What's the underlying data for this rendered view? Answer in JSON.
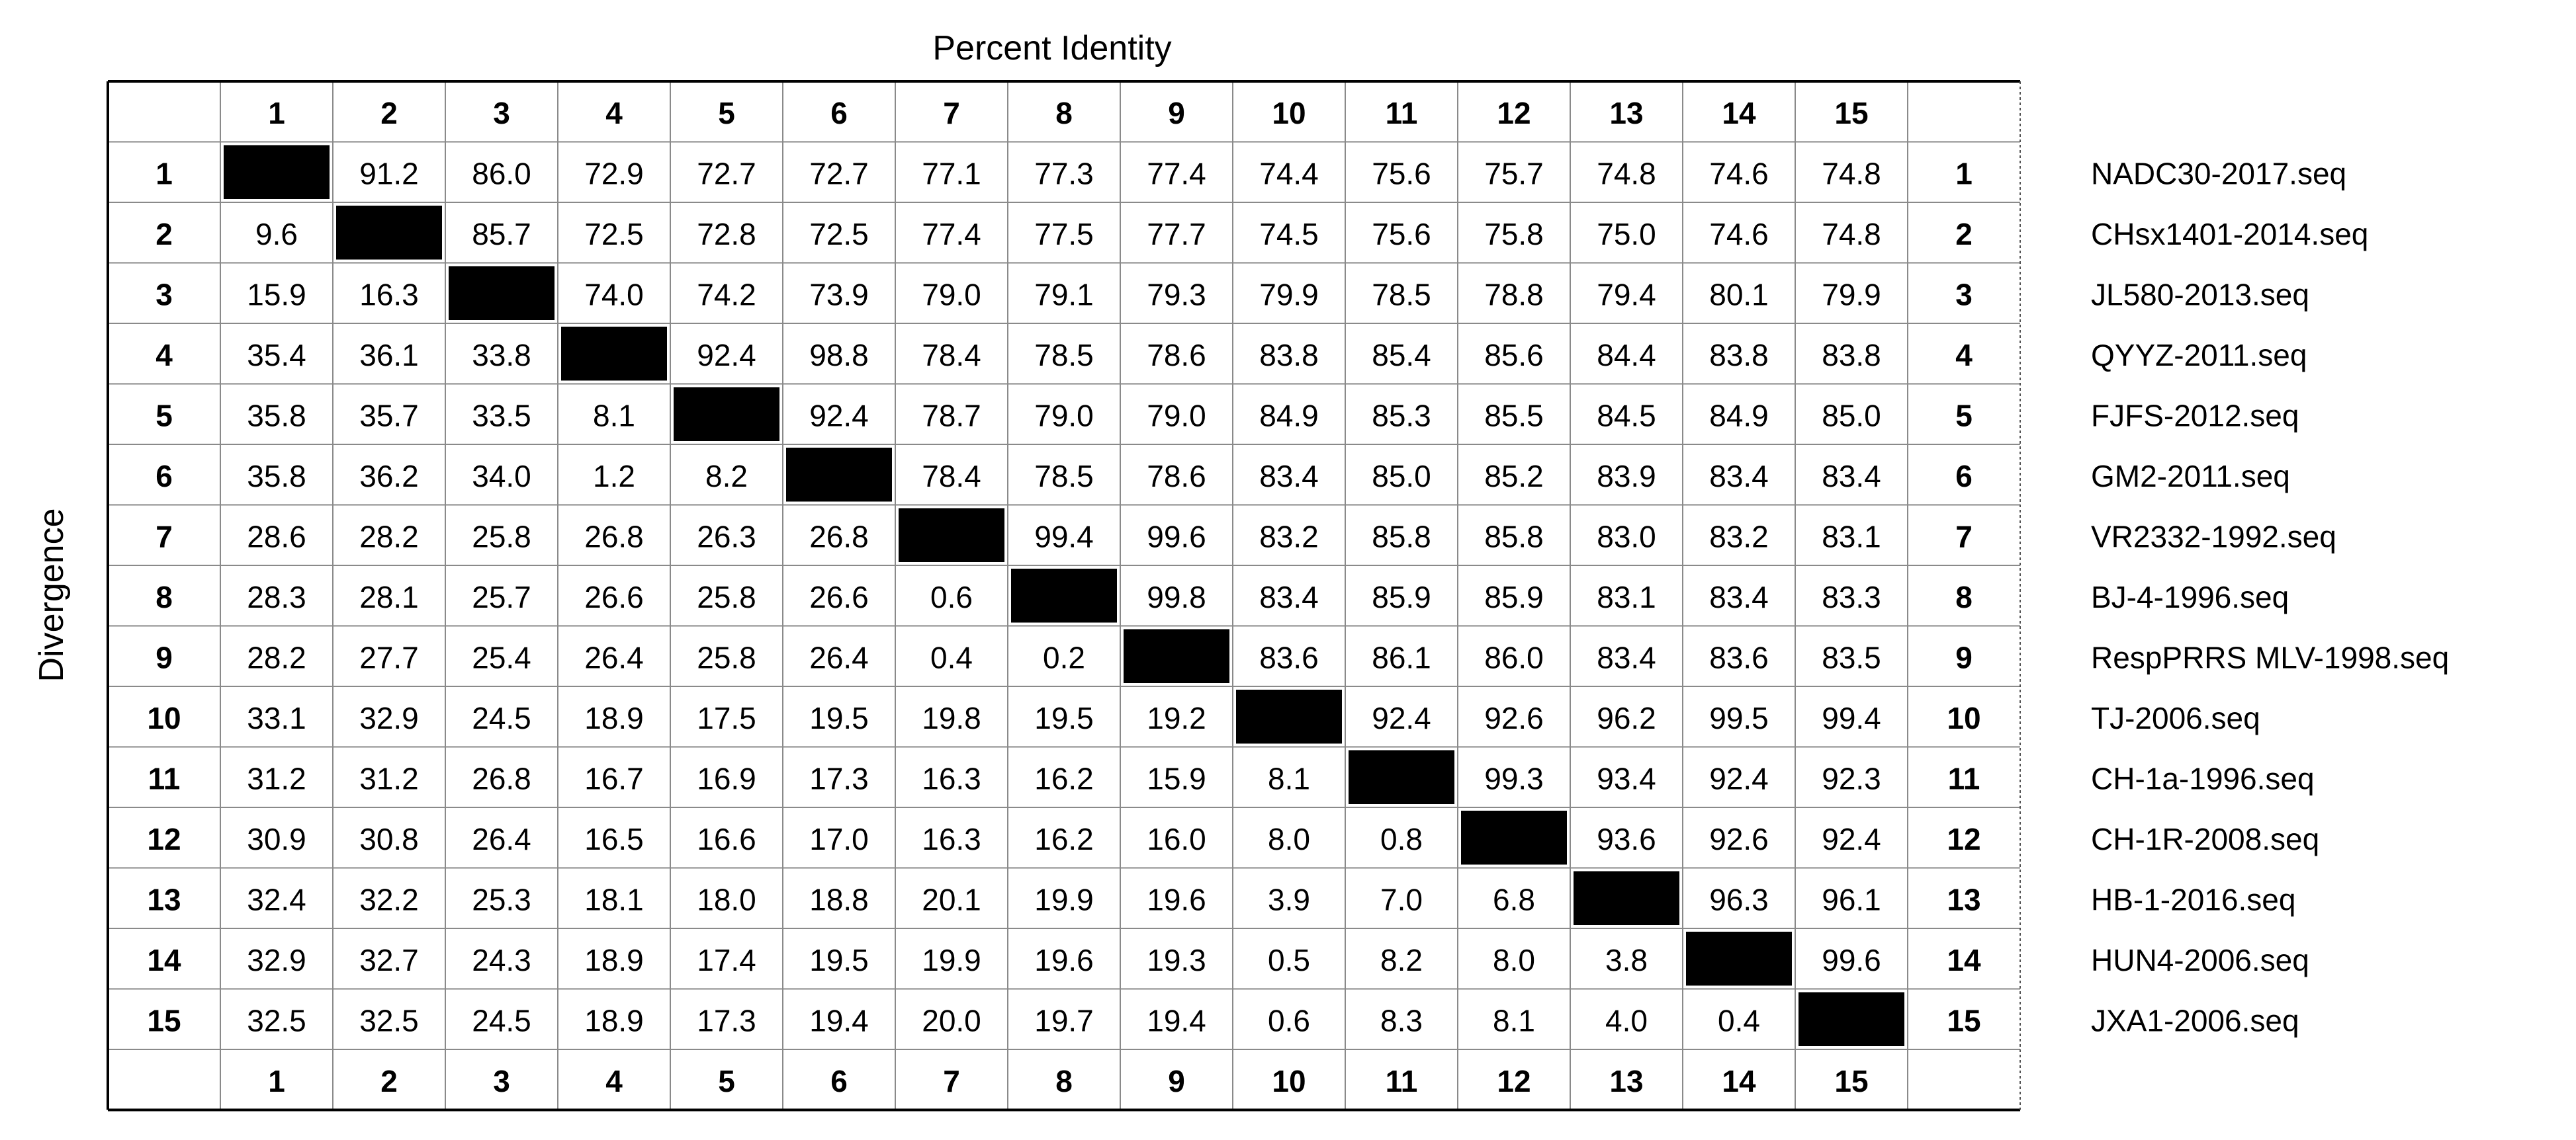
{
  "top_label": "Percent Identity",
  "side_label": "Divergence",
  "column_numbers": [
    "1",
    "2",
    "3",
    "4",
    "5",
    "6",
    "7",
    "8",
    "9",
    "10",
    "11",
    "12",
    "13",
    "14",
    "15"
  ],
  "row_numbers": [
    "1",
    "2",
    "3",
    "4",
    "5",
    "6",
    "7",
    "8",
    "9",
    "10",
    "11",
    "12",
    "13",
    "14",
    "15"
  ],
  "sequence_names": [
    "NADC30-2017.seq",
    "CHsx1401-2014.seq",
    "JL580-2013.seq",
    "QYYZ-2011.seq",
    "FJFS-2012.seq",
    "GM2-2011.seq",
    "VR2332-1992.seq",
    "BJ-4-1996.seq",
    "RespPRRS MLV-1998.seq",
    "TJ-2006.seq",
    "CH-1a-1996.seq",
    "CH-1R-2008.seq",
    "HB-1-2016.seq",
    "HUN4-2006.seq",
    "JXA1-2006.seq"
  ],
  "chart_data": {
    "type": "table",
    "title": "Percent Identity",
    "ylabel": "Divergence",
    "diagonal_color": "#000000",
    "cells": [
      [
        "",
        "91.2",
        "86.0",
        "72.9",
        "72.7",
        "72.7",
        "77.1",
        "77.3",
        "77.4",
        "74.4",
        "75.6",
        "75.7",
        "74.8",
        "74.6",
        "74.8"
      ],
      [
        "9.6",
        "",
        "85.7",
        "72.5",
        "72.8",
        "72.5",
        "77.4",
        "77.5",
        "77.7",
        "74.5",
        "75.6",
        "75.8",
        "75.0",
        "74.6",
        "74.8"
      ],
      [
        "15.9",
        "16.3",
        "",
        "74.0",
        "74.2",
        "73.9",
        "79.0",
        "79.1",
        "79.3",
        "79.9",
        "78.5",
        "78.8",
        "79.4",
        "80.1",
        "79.9"
      ],
      [
        "35.4",
        "36.1",
        "33.8",
        "",
        "92.4",
        "98.8",
        "78.4",
        "78.5",
        "78.6",
        "83.8",
        "85.4",
        "85.6",
        "84.4",
        "83.8",
        "83.8"
      ],
      [
        "35.8",
        "35.7",
        "33.5",
        "8.1",
        "",
        "92.4",
        "78.7",
        "79.0",
        "79.0",
        "84.9",
        "85.3",
        "85.5",
        "84.5",
        "84.9",
        "85.0"
      ],
      [
        "35.8",
        "36.2",
        "34.0",
        "1.2",
        "8.2",
        "",
        "78.4",
        "78.5",
        "78.6",
        "83.4",
        "85.0",
        "85.2",
        "83.9",
        "83.4",
        "83.4"
      ],
      [
        "28.6",
        "28.2",
        "25.8",
        "26.8",
        "26.3",
        "26.8",
        "",
        "99.4",
        "99.6",
        "83.2",
        "85.8",
        "85.8",
        "83.0",
        "83.2",
        "83.1"
      ],
      [
        "28.3",
        "28.1",
        "25.7",
        "26.6",
        "25.8",
        "26.6",
        "0.6",
        "",
        "99.8",
        "83.4",
        "85.9",
        "85.9",
        "83.1",
        "83.4",
        "83.3"
      ],
      [
        "28.2",
        "27.7",
        "25.4",
        "26.4",
        "25.8",
        "26.4",
        "0.4",
        "0.2",
        "",
        "83.6",
        "86.1",
        "86.0",
        "83.4",
        "83.6",
        "83.5"
      ],
      [
        "33.1",
        "32.9",
        "24.5",
        "18.9",
        "17.5",
        "19.5",
        "19.8",
        "19.5",
        "19.2",
        "",
        "92.4",
        "92.6",
        "96.2",
        "99.5",
        "99.4"
      ],
      [
        "31.2",
        "31.2",
        "26.8",
        "16.7",
        "16.9",
        "17.3",
        "16.3",
        "16.2",
        "15.9",
        "8.1",
        "",
        "99.3",
        "93.4",
        "92.4",
        "92.3"
      ],
      [
        "30.9",
        "30.8",
        "26.4",
        "16.5",
        "16.6",
        "17.0",
        "16.3",
        "16.2",
        "16.0",
        "8.0",
        "0.8",
        "",
        "93.6",
        "92.6",
        "92.4"
      ],
      [
        "32.4",
        "32.2",
        "25.3",
        "18.1",
        "18.0",
        "18.8",
        "20.1",
        "19.9",
        "19.6",
        "3.9",
        "7.0",
        "6.8",
        "",
        "96.3",
        "96.1"
      ],
      [
        "32.9",
        "32.7",
        "24.3",
        "18.9",
        "17.4",
        "19.5",
        "19.9",
        "19.6",
        "19.3",
        "0.5",
        "8.2",
        "8.0",
        "3.8",
        "",
        "99.6"
      ],
      [
        "32.5",
        "32.5",
        "24.5",
        "18.9",
        "17.3",
        "19.4",
        "20.0",
        "19.7",
        "19.4",
        "0.6",
        "8.3",
        "8.1",
        "4.0",
        "0.4",
        ""
      ]
    ]
  }
}
